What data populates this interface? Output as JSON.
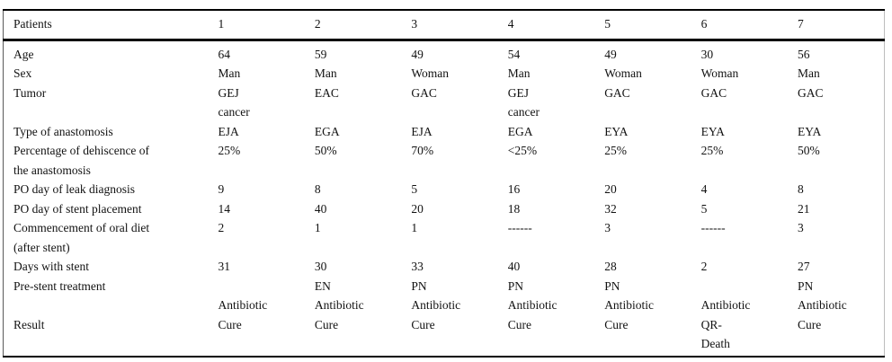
{
  "table": {
    "header": {
      "label": "Patients",
      "patient_ids": [
        "1",
        "2",
        "3",
        "4",
        "5",
        "6",
        "7"
      ]
    },
    "rows": [
      {
        "label": "Age",
        "values": [
          "64",
          "59",
          "49",
          "54",
          "49",
          "30",
          "56"
        ]
      },
      {
        "label": "Sex",
        "values": [
          "Man",
          "Man",
          "Woman",
          "Man",
          "Woman",
          "Woman",
          "Man"
        ]
      },
      {
        "label": "Tumor",
        "values": [
          "GEJ\ncancer",
          "EAC",
          "GAC",
          "GEJ\ncancer",
          "GAC",
          "GAC",
          "GAC"
        ]
      },
      {
        "label": "Type of anastomosis",
        "values": [
          "EJA",
          "EGA",
          "EJA",
          "EGA",
          "EYA",
          "EYA",
          "EYA"
        ]
      },
      {
        "label": "Percentage of dehiscence of\nthe anastomosis",
        "values": [
          "25%",
          "50%",
          "70%",
          "<25%",
          "25%",
          "25%",
          "50%"
        ]
      },
      {
        "label": "PO day of leak diagnosis",
        "values": [
          "9",
          "8",
          "5",
          "16",
          "20",
          "4",
          "8"
        ]
      },
      {
        "label": "PO day of stent placement",
        "values": [
          "14",
          "40",
          "20",
          "18",
          "32",
          "5",
          "21"
        ]
      },
      {
        "label": "Commencement of oral diet\n(after stent)",
        "values": [
          "2",
          "1",
          "1",
          "------",
          "3",
          "------",
          "3"
        ]
      },
      {
        "label": "Days with stent",
        "values": [
          "31",
          "30",
          "33",
          "40",
          "28",
          "2",
          "27"
        ]
      },
      {
        "label": "Pre-stent treatment",
        "values": [
          "\nAntibiotic",
          "EN\nAntibiotic",
          "PN\nAntibiotic",
          "PN\nAntibiotic",
          "PN\nAntibiotic",
          "\nAntibiotic",
          "PN\nAntibiotic"
        ]
      },
      {
        "label": "Result",
        "values": [
          "Cure",
          "Cure",
          "Cure",
          "Cure",
          "Cure",
          "QR-\nDeath",
          "Cure"
        ]
      }
    ]
  }
}
